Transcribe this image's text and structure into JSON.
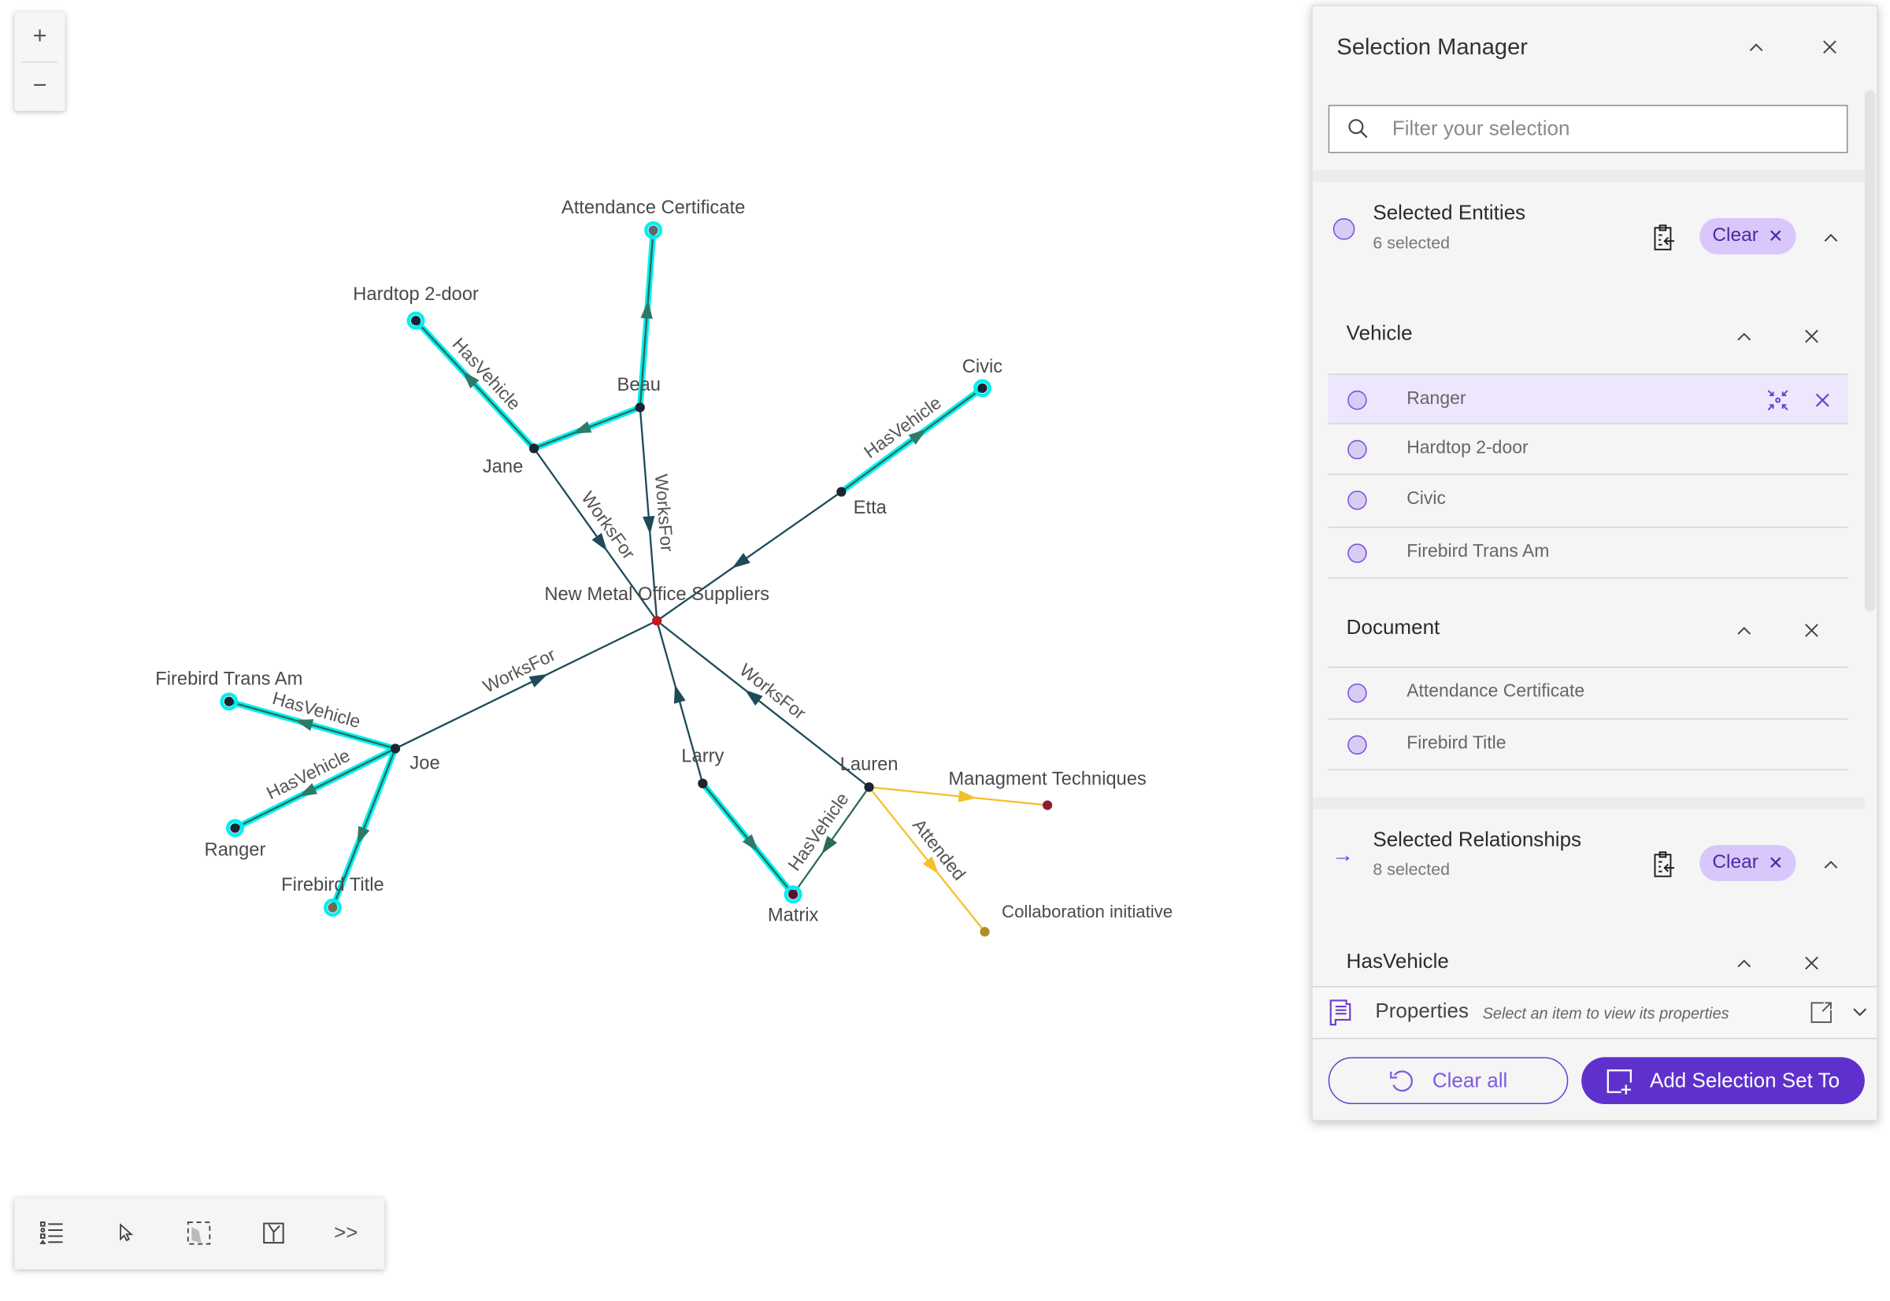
{
  "map_controls": {
    "zoom_in": "+",
    "zoom_out": "−"
  },
  "graph": {
    "colors": {
      "selected": "#00f0f0",
      "worksfor": "#1d4b5a",
      "hasvehicle": "#2a6b58",
      "attended": "#f6bf2a",
      "node": "#1a2433",
      "center_node": "#c8161c"
    },
    "nodes": [
      {
        "id": "nmos",
        "label": "New Metal Office Suppliers"
      },
      {
        "id": "jane",
        "label": "Jane"
      },
      {
        "id": "beau",
        "label": "Beau"
      },
      {
        "id": "etta",
        "label": "Etta"
      },
      {
        "id": "joe",
        "label": "Joe"
      },
      {
        "id": "larry",
        "label": "Larry"
      },
      {
        "id": "lauren",
        "label": "Lauren"
      },
      {
        "id": "hardtop",
        "label": "Hardtop 2-door"
      },
      {
        "id": "attcert",
        "label": "Attendance Certificate"
      },
      {
        "id": "civic",
        "label": "Civic"
      },
      {
        "id": "fta",
        "label": "Firebird Trans Am"
      },
      {
        "id": "ranger",
        "label": "Ranger"
      },
      {
        "id": "ftitle",
        "label": "Firebird Title"
      },
      {
        "id": "matrix",
        "label": "Matrix"
      },
      {
        "id": "mgmt",
        "label": "Managment Techniques"
      },
      {
        "id": "collab",
        "label": "Collaboration initiative"
      }
    ],
    "edges": [
      {
        "from": "jane",
        "to": "nmos",
        "type": "worksfor",
        "label": "WorksFor",
        "selected": false
      },
      {
        "from": "beau",
        "to": "nmos",
        "type": "worksfor",
        "label": "WorksFor",
        "selected": false
      },
      {
        "from": "etta",
        "to": "nmos",
        "type": "worksfor",
        "label": "",
        "selected": false
      },
      {
        "from": "joe",
        "to": "nmos",
        "type": "worksfor",
        "label": "WorksFor",
        "selected": false
      },
      {
        "from": "larry",
        "to": "nmos",
        "type": "worksfor",
        "label": "",
        "selected": false
      },
      {
        "from": "lauren",
        "to": "nmos",
        "type": "worksfor",
        "label": "WorksFor",
        "selected": false
      },
      {
        "from": "jane",
        "to": "hardtop",
        "type": "hasvehicle",
        "label": "HasVehicle",
        "selected": true
      },
      {
        "from": "beau",
        "to": "jane",
        "type": "hasvehicle",
        "label": "",
        "selected": true
      },
      {
        "from": "beau",
        "to": "attcert",
        "type": "hasvehicle",
        "label": "",
        "selected": true
      },
      {
        "from": "etta",
        "to": "civic",
        "type": "hasvehicle",
        "label": "HasVehicle",
        "selected": true
      },
      {
        "from": "joe",
        "to": "fta",
        "type": "hasvehicle",
        "label": "HasVehicle",
        "selected": true
      },
      {
        "from": "joe",
        "to": "ranger",
        "type": "hasvehicle",
        "label": "HasVehicle",
        "selected": true
      },
      {
        "from": "joe",
        "to": "ftitle",
        "type": "hasvehicle",
        "label": "",
        "selected": true
      },
      {
        "from": "larry",
        "to": "matrix",
        "type": "hasvehicle",
        "label": "",
        "selected": true
      },
      {
        "from": "lauren",
        "to": "matrix",
        "type": "hasvehicle",
        "label": "HasVehicle",
        "selected": false
      },
      {
        "from": "lauren",
        "to": "mgmt",
        "type": "attended",
        "label": "",
        "selected": false
      },
      {
        "from": "lauren",
        "to": "collab",
        "type": "attended",
        "label": "Attended",
        "selected": false
      }
    ]
  },
  "panel": {
    "title": "Selection Manager",
    "search_placeholder": "Filter your selection",
    "entities": {
      "title": "Selected Entities",
      "count": "6 selected",
      "clear": "Clear",
      "groups": [
        {
          "name": "Vehicle",
          "items": [
            "Ranger",
            "Hardtop 2-door",
            "Civic",
            "Firebird Trans Am"
          ]
        },
        {
          "name": "Document",
          "items": [
            "Attendance Certificate",
            "Firebird Title"
          ]
        }
      ],
      "highlighted_item": "Ranger"
    },
    "relationships": {
      "title": "Selected Relationships",
      "count": "8 selected",
      "clear": "Clear",
      "groups": [
        {
          "name": "HasVehicle"
        }
      ]
    },
    "properties": {
      "label": "Properties",
      "hint": "Select an item to view its properties"
    },
    "clear_all": "Clear all",
    "add_selection": "Add Selection Set To",
    "accent": "#5f31cc"
  }
}
